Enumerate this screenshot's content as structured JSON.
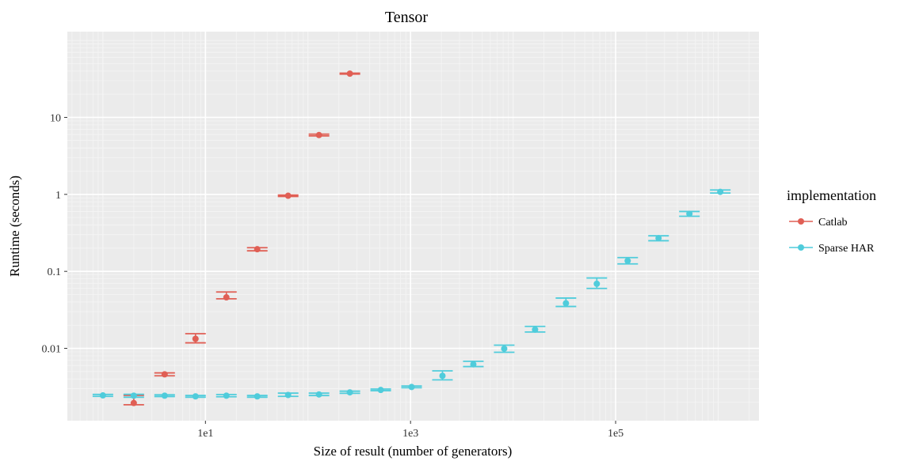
{
  "chart_data": {
    "type": "scatter",
    "title": "Tensor",
    "xlabel": "Size of result (number of generators)",
    "ylabel": "Runtime (seconds)",
    "x_scale": "log10",
    "y_scale": "log10",
    "xlim": [
      0.45,
      2500000
    ],
    "ylim": [
      0.00115,
      130
    ],
    "x_ticks": [
      {
        "value": 10,
        "label": "1e1"
      },
      {
        "value": 1000,
        "label": "1e3"
      },
      {
        "value": 100000,
        "label": "1e5"
      }
    ],
    "y_ticks": [
      {
        "value": 0.01,
        "label": "0.01"
      },
      {
        "value": 0.1,
        "label": "0.1"
      },
      {
        "value": 1,
        "label": "1"
      },
      {
        "value": 10,
        "label": "10"
      }
    ],
    "grid": true,
    "error_bars": true,
    "legend": {
      "title": "implementation",
      "placement": "right"
    },
    "series": [
      {
        "name": "Catlab",
        "color": "#E05F55",
        "points": [
          {
            "x": 2,
            "y": 0.00195,
            "lo": 0.00185,
            "hi": 0.00245
          },
          {
            "x": 4,
            "y": 0.0046,
            "lo": 0.0044,
            "hi": 0.0048
          },
          {
            "x": 8,
            "y": 0.0133,
            "lo": 0.0118,
            "hi": 0.0155
          },
          {
            "x": 16,
            "y": 0.046,
            "lo": 0.044,
            "hi": 0.054
          },
          {
            "x": 32,
            "y": 0.194,
            "lo": 0.185,
            "hi": 0.203
          },
          {
            "x": 64,
            "y": 0.96,
            "lo": 0.94,
            "hi": 0.98
          },
          {
            "x": 128,
            "y": 5.9,
            "lo": 5.75,
            "hi": 6.05
          },
          {
            "x": 256,
            "y": 37,
            "lo": 36.5,
            "hi": 37.5
          }
        ]
      },
      {
        "name": "Sparse HAR",
        "color": "#4FCCDB",
        "points": [
          {
            "x": 1,
            "y": 0.00245,
            "lo": 0.00238,
            "hi": 0.00252
          },
          {
            "x": 2,
            "y": 0.00243,
            "lo": 0.00232,
            "hi": 0.00253
          },
          {
            "x": 4,
            "y": 0.00243,
            "lo": 0.00237,
            "hi": 0.00249
          },
          {
            "x": 8,
            "y": 0.00238,
            "lo": 0.00232,
            "hi": 0.00244
          },
          {
            "x": 16,
            "y": 0.00243,
            "lo": 0.00235,
            "hi": 0.00251
          },
          {
            "x": 32,
            "y": 0.00238,
            "lo": 0.00232,
            "hi": 0.00244
          },
          {
            "x": 64,
            "y": 0.00248,
            "lo": 0.00238,
            "hi": 0.00262
          },
          {
            "x": 128,
            "y": 0.00252,
            "lo": 0.00244,
            "hi": 0.00262
          },
          {
            "x": 256,
            "y": 0.00268,
            "lo": 0.00261,
            "hi": 0.00278
          },
          {
            "x": 512,
            "y": 0.00288,
            "lo": 0.00282,
            "hi": 0.00296
          },
          {
            "x": 1024,
            "y": 0.00315,
            "lo": 0.00308,
            "hi": 0.00324
          },
          {
            "x": 2048,
            "y": 0.0044,
            "lo": 0.0039,
            "hi": 0.0051
          },
          {
            "x": 4096,
            "y": 0.0062,
            "lo": 0.0058,
            "hi": 0.0068
          },
          {
            "x": 8192,
            "y": 0.0099,
            "lo": 0.0089,
            "hi": 0.011
          },
          {
            "x": 16384,
            "y": 0.0175,
            "lo": 0.0163,
            "hi": 0.0193
          },
          {
            "x": 32768,
            "y": 0.0385,
            "lo": 0.035,
            "hi": 0.045
          },
          {
            "x": 65536,
            "y": 0.069,
            "lo": 0.06,
            "hi": 0.082
          },
          {
            "x": 131072,
            "y": 0.137,
            "lo": 0.125,
            "hi": 0.151
          },
          {
            "x": 262144,
            "y": 0.27,
            "lo": 0.25,
            "hi": 0.29
          },
          {
            "x": 524288,
            "y": 0.56,
            "lo": 0.52,
            "hi": 0.6
          },
          {
            "x": 1048576,
            "y": 1.08,
            "lo": 1.04,
            "hi": 1.14
          }
        ]
      }
    ]
  }
}
